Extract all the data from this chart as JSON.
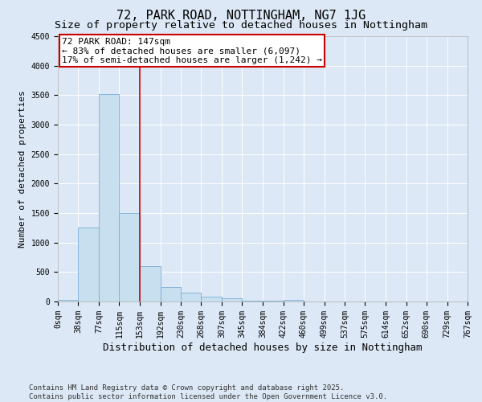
{
  "title_line1": "72, PARK ROAD, NOTTINGHAM, NG7 1JG",
  "title_line2": "Size of property relative to detached houses in Nottingham",
  "xlabel": "Distribution of detached houses by size in Nottingham",
  "ylabel": "Number of detached properties",
  "bins": [
    0,
    38,
    77,
    115,
    153,
    192,
    230,
    268,
    307,
    345,
    384,
    422,
    460,
    499,
    537,
    575,
    614,
    652,
    690,
    729,
    767
  ],
  "bin_labels": [
    "0sqm",
    "38sqm",
    "77sqm",
    "115sqm",
    "153sqm",
    "192sqm",
    "230sqm",
    "268sqm",
    "307sqm",
    "345sqm",
    "384sqm",
    "422sqm",
    "460sqm",
    "499sqm",
    "537sqm",
    "575sqm",
    "614sqm",
    "652sqm",
    "690sqm",
    "729sqm",
    "767sqm"
  ],
  "values": [
    30,
    1250,
    3520,
    1500,
    600,
    250,
    150,
    80,
    50,
    20,
    10,
    30,
    5,
    5,
    5,
    0,
    0,
    0,
    0,
    0
  ],
  "bar_color": "#c8dff0",
  "bar_edge_color": "#7aaed6",
  "vline_x": 153,
  "vline_color": "#cc0000",
  "annotation_text": "72 PARK ROAD: 147sqm\n← 83% of detached houses are smaller (6,097)\n17% of semi-detached houses are larger (1,242) →",
  "annotation_box_color": "#cc0000",
  "ylim": [
    0,
    4500
  ],
  "yticks": [
    0,
    500,
    1000,
    1500,
    2000,
    2500,
    3000,
    3500,
    4000,
    4500
  ],
  "background_color": "#dce8f5",
  "plot_bg_color": "#dce8f5",
  "grid_color": "#ffffff",
  "footer_line1": "Contains HM Land Registry data © Crown copyright and database right 2025.",
  "footer_line2": "Contains public sector information licensed under the Open Government Licence v3.0.",
  "title_fontsize": 11,
  "subtitle_fontsize": 9.5,
  "xlabel_fontsize": 9,
  "ylabel_fontsize": 8,
  "tick_fontsize": 7,
  "annotation_fontsize": 8,
  "footer_fontsize": 6.5
}
